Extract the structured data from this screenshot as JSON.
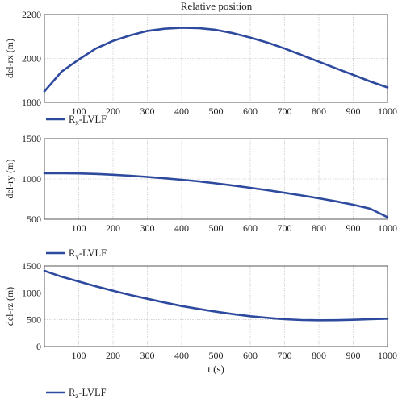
{
  "title": "Relative position",
  "chart_data": [
    {
      "type": "line",
      "ylabel": "del-rx (m)",
      "xlabel": "",
      "xlim": [
        0,
        1000
      ],
      "ylim": [
        1800,
        2200
      ],
      "xticks": [
        100,
        200,
        300,
        400,
        500,
        600,
        700,
        800,
        900,
        1000
      ],
      "yticks": [
        1800,
        2000,
        2200
      ],
      "grid": true,
      "legend_position": "below-left",
      "series": [
        {
          "legend_main": "R",
          "legend_sub": "x",
          "legend_suffix": "-LVLF",
          "color": "#2e4a9e",
          "x": [
            0,
            50,
            100,
            150,
            200,
            250,
            300,
            350,
            400,
            450,
            500,
            550,
            600,
            650,
            700,
            750,
            800,
            850,
            900,
            950,
            1000
          ],
          "y": [
            1850,
            1940,
            1995,
            2045,
            2080,
            2105,
            2125,
            2135,
            2140,
            2138,
            2130,
            2115,
            2095,
            2072,
            2045,
            2015,
            1985,
            1955,
            1925,
            1895,
            1868
          ]
        }
      ]
    },
    {
      "type": "line",
      "ylabel": "del-ry (m)",
      "xlabel": "",
      "xlim": [
        0,
        1000
      ],
      "ylim": [
        500,
        1500
      ],
      "xticks": [
        100,
        200,
        300,
        400,
        500,
        600,
        700,
        800,
        900,
        1000
      ],
      "yticks": [
        500,
        1000,
        1500
      ],
      "grid": true,
      "legend_position": "below-left",
      "series": [
        {
          "legend_main": "R",
          "legend_sub": "y",
          "legend_suffix": "-LVLF",
          "color": "#2e4a9e",
          "x": [
            0,
            50,
            100,
            150,
            200,
            250,
            300,
            350,
            400,
            450,
            500,
            550,
            600,
            650,
            700,
            750,
            800,
            850,
            900,
            950,
            1000
          ],
          "y": [
            1070,
            1070,
            1068,
            1062,
            1052,
            1040,
            1025,
            1008,
            990,
            970,
            945,
            918,
            890,
            860,
            828,
            795,
            760,
            722,
            680,
            630,
            525
          ]
        }
      ]
    },
    {
      "type": "line",
      "ylabel": "del-rz (m)",
      "xlabel": "t (s)",
      "xlim": [
        0,
        1000
      ],
      "ylim": [
        0,
        1500
      ],
      "xticks": [
        100,
        200,
        300,
        400,
        500,
        600,
        700,
        800,
        900,
        1000
      ],
      "yticks": [
        0,
        500,
        1000,
        1500
      ],
      "grid": true,
      "legend_position": "below-left",
      "series": [
        {
          "legend_main": "R",
          "legend_sub": "z",
          "legend_suffix": "-LVLF",
          "color": "#2e4a9e",
          "x": [
            0,
            50,
            100,
            150,
            200,
            250,
            300,
            350,
            400,
            450,
            500,
            550,
            600,
            650,
            700,
            750,
            800,
            850,
            900,
            950,
            1000
          ],
          "y": [
            1410,
            1300,
            1210,
            1120,
            1040,
            960,
            890,
            820,
            755,
            700,
            650,
            605,
            565,
            535,
            510,
            495,
            490,
            492,
            500,
            510,
            520
          ]
        }
      ]
    }
  ]
}
